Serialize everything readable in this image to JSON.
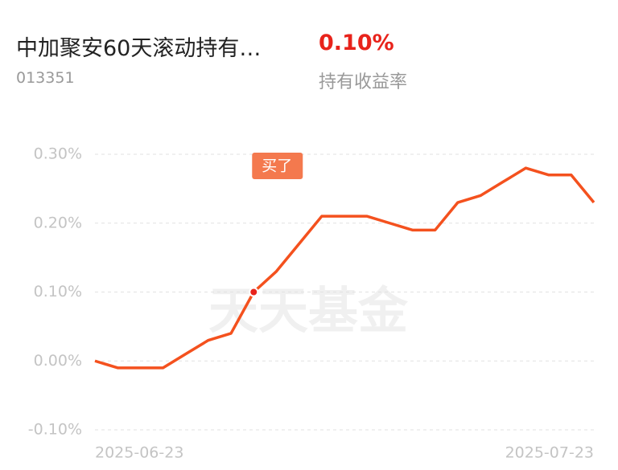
{
  "header": {
    "title": "中加聚安60天滚动持有…",
    "code": "013351",
    "return_value": "0.10%",
    "return_label": "持有收益率"
  },
  "chart_data": {
    "type": "line",
    "categories": [
      "2025-06-23",
      null,
      null,
      null,
      null,
      null,
      null,
      null,
      null,
      null,
      null,
      null,
      null,
      null,
      null,
      null,
      null,
      null,
      null,
      null,
      null,
      null,
      "2025-07-23"
    ],
    "series": [
      {
        "name": "持有收益率",
        "color": "#f4511e",
        "values": [
          0.0,
          -0.01,
          -0.01,
          -0.01,
          0.01,
          0.03,
          0.04,
          0.1,
          0.13,
          0.17,
          0.21,
          0.21,
          0.21,
          0.2,
          0.19,
          0.19,
          0.23,
          0.24,
          0.26,
          0.28,
          0.27,
          0.27,
          0.23
        ]
      }
    ],
    "ylim": [
      -0.1,
      0.3
    ],
    "yticks": [
      {
        "value": -0.1,
        "label": "-0.10%"
      },
      {
        "value": 0.0,
        "label": "0.00%"
      },
      {
        "value": 0.1,
        "label": "0.10%"
      },
      {
        "value": 0.2,
        "label": "0.20%"
      },
      {
        "value": 0.3,
        "label": "0.30%"
      }
    ],
    "grid": true,
    "annotation": {
      "text": "买了",
      "index": 7,
      "color": "#f4794e"
    },
    "watermark": "天天基金"
  }
}
